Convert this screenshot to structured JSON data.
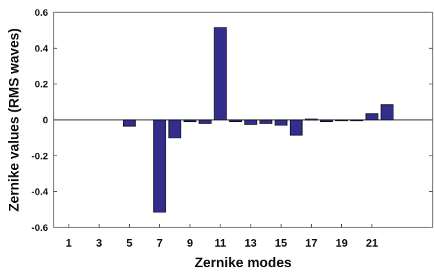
{
  "chart_data": {
    "type": "bar",
    "xlabel": "Zernike modes",
    "ylabel": "Zernike values (RMS waves)",
    "xlim": [
      0,
      25
    ],
    "ylim": [
      -0.6,
      0.6
    ],
    "x_tick_labels": [
      1,
      3,
      5,
      7,
      9,
      11,
      13,
      15,
      17,
      19,
      21
    ],
    "y_tick_labels": [
      -0.6,
      -0.4,
      -0.2,
      0,
      0.2,
      0.4,
      0.6
    ],
    "bar_color": "#332e8c",
    "grid": false,
    "series": [
      {
        "x": [
          5,
          7,
          8,
          9,
          10,
          11,
          12,
          13,
          14,
          15,
          16,
          17,
          18,
          19,
          20,
          21,
          22
        ],
        "values": [
          -0.035,
          -0.515,
          -0.1,
          -0.01,
          -0.02,
          0.515,
          -0.01,
          -0.025,
          -0.02,
          -0.03,
          -0.085,
          0.005,
          -0.01,
          -0.005,
          -0.005,
          0.035,
          0.085
        ]
      }
    ]
  }
}
